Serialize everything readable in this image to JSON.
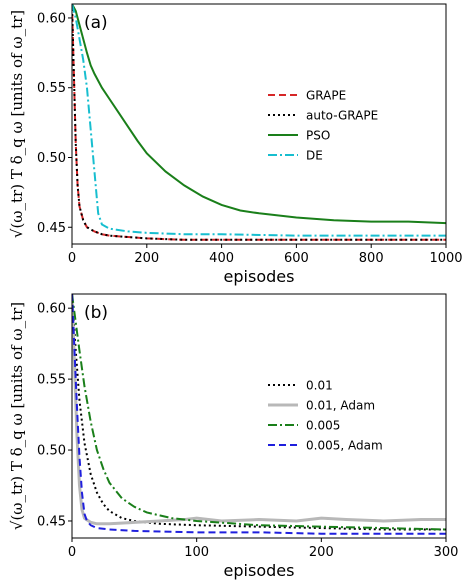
{
  "chart_data": [
    {
      "type": "line",
      "panel_label": "(a)",
      "xlabel": "episodes",
      "ylabel": "√(ω_tr) T δ_q ω  [units of ω_tr]",
      "xlim": [
        0,
        1000
      ],
      "ylim": [
        0.438,
        0.61
      ],
      "xticks": [
        0,
        200,
        400,
        600,
        800,
        1000
      ],
      "yticks": [
        0.45,
        0.5,
        0.55,
        0.6
      ],
      "ytick_labels": [
        "0.45",
        "0.50",
        "0.55",
        "0.60"
      ],
      "legend_position": "center-right",
      "series": [
        {
          "name": "GRAPE",
          "color": "#d62728",
          "style": "dashed",
          "x": [
            0,
            5,
            10,
            15,
            20,
            30,
            40,
            60,
            80,
            100,
            150,
            200,
            300,
            400,
            600,
            800,
            1000
          ],
          "y": [
            0.61,
            0.56,
            0.51,
            0.48,
            0.465,
            0.455,
            0.45,
            0.447,
            0.445,
            0.444,
            0.443,
            0.442,
            0.441,
            0.441,
            0.441,
            0.441,
            0.441
          ]
        },
        {
          "name": "auto-GRAPE",
          "color": "#000000",
          "style": "dotted",
          "x": [
            0,
            5,
            10,
            15,
            20,
            30,
            40,
            60,
            80,
            100,
            150,
            200,
            300,
            400,
            600,
            800,
            1000
          ],
          "y": [
            0.61,
            0.56,
            0.51,
            0.48,
            0.465,
            0.455,
            0.45,
            0.447,
            0.445,
            0.444,
            0.443,
            0.442,
            0.441,
            0.441,
            0.441,
            0.441,
            0.441
          ]
        },
        {
          "name": "PSO",
          "color": "#1a7f1a",
          "style": "solid",
          "x": [
            0,
            10,
            20,
            30,
            40,
            50,
            60,
            80,
            100,
            125,
            150,
            175,
            200,
            250,
            300,
            350,
            400,
            450,
            500,
            600,
            700,
            800,
            900,
            1000
          ],
          "y": [
            0.61,
            0.605,
            0.595,
            0.585,
            0.575,
            0.566,
            0.56,
            0.55,
            0.542,
            0.532,
            0.522,
            0.512,
            0.503,
            0.49,
            0.48,
            0.472,
            0.466,
            0.462,
            0.46,
            0.457,
            0.455,
            0.454,
            0.454,
            0.453
          ]
        },
        {
          "name": "DE",
          "color": "#17becf",
          "style": "dashdot",
          "x": [
            0,
            10,
            20,
            30,
            40,
            50,
            60,
            70,
            80,
            100,
            150,
            200,
            300,
            400,
            600,
            800,
            1000
          ],
          "y": [
            0.61,
            0.6,
            0.585,
            0.57,
            0.55,
            0.52,
            0.49,
            0.46,
            0.452,
            0.449,
            0.447,
            0.446,
            0.445,
            0.445,
            0.444,
            0.444,
            0.444
          ]
        }
      ]
    },
    {
      "type": "line",
      "panel_label": "(b)",
      "xlabel": "episodes",
      "ylabel": "√(ω_tr) T δ_q ω  [units of ω_tr]",
      "xlim": [
        0,
        300
      ],
      "ylim": [
        0.438,
        0.61
      ],
      "xticks": [
        0,
        100,
        200,
        300
      ],
      "yticks": [
        0.45,
        0.5,
        0.55,
        0.6
      ],
      "ytick_labels": [
        "0.45",
        "0.50",
        "0.55",
        "0.60"
      ],
      "legend_position": "center-right",
      "series": [
        {
          "name": "0.01",
          "color": "#000000",
          "style": "dotted",
          "x": [
            0,
            3,
            6,
            10,
            15,
            20,
            25,
            30,
            40,
            50,
            70,
            100,
            150,
            200,
            250,
            300
          ],
          "y": [
            0.61,
            0.57,
            0.535,
            0.505,
            0.483,
            0.47,
            0.462,
            0.457,
            0.452,
            0.45,
            0.448,
            0.447,
            0.446,
            0.445,
            0.444,
            0.444
          ]
        },
        {
          "name": "0.01, Adam",
          "color": "#b8b8b8",
          "style": "solid",
          "x": [
            0,
            2,
            4,
            6,
            8,
            10,
            15,
            20,
            30,
            50,
            70,
            90,
            100,
            120,
            150,
            180,
            200,
            220,
            250,
            280,
            300
          ],
          "y": [
            0.61,
            0.56,
            0.51,
            0.475,
            0.458,
            0.452,
            0.449,
            0.448,
            0.448,
            0.449,
            0.45,
            0.451,
            0.452,
            0.45,
            0.451,
            0.45,
            0.452,
            0.451,
            0.45,
            0.451,
            0.451
          ]
        },
        {
          "name": "0.005",
          "color": "#1a7f1a",
          "style": "dashdot",
          "x": [
            0,
            3,
            6,
            10,
            15,
            20,
            25,
            30,
            40,
            50,
            60,
            80,
            100,
            150,
            200,
            250,
            300
          ],
          "y": [
            0.61,
            0.59,
            0.57,
            0.545,
            0.52,
            0.5,
            0.487,
            0.477,
            0.466,
            0.46,
            0.456,
            0.452,
            0.45,
            0.447,
            0.446,
            0.445,
            0.444
          ]
        },
        {
          "name": "0.005, Adam",
          "color": "#1f1fdd",
          "style": "dashed",
          "x": [
            0,
            2,
            4,
            6,
            8,
            10,
            12,
            15,
            20,
            30,
            50,
            100,
            150,
            200,
            250,
            300
          ],
          "y": [
            0.61,
            0.57,
            0.53,
            0.495,
            0.47,
            0.455,
            0.45,
            0.447,
            0.445,
            0.444,
            0.443,
            0.442,
            0.442,
            0.441,
            0.441,
            0.441
          ]
        }
      ]
    }
  ]
}
